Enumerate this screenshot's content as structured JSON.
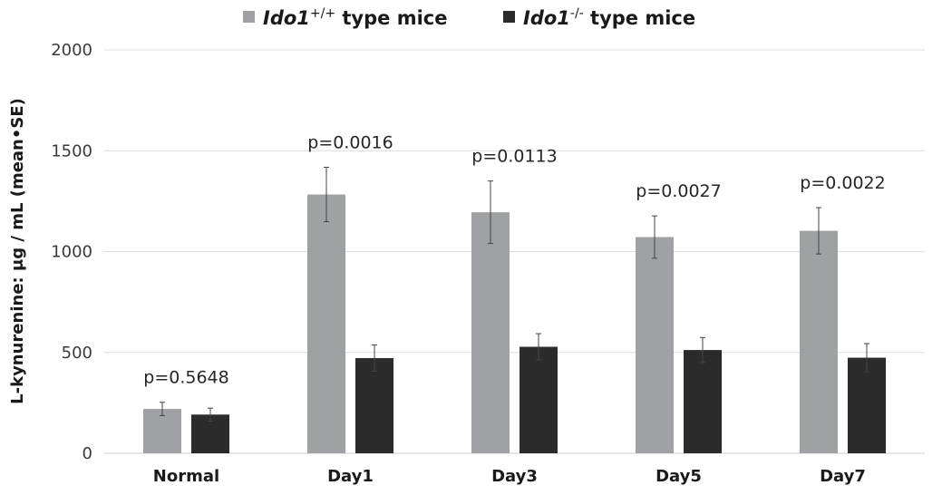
{
  "chart_data": {
    "type": "bar",
    "categories": [
      "Normal",
      "Day1",
      "Day3",
      "Day5",
      "Day7"
    ],
    "series": [
      {
        "name": "Ido1+/+ type mice",
        "name_parts": [
          "Ido1",
          "+/+",
          " type mice"
        ],
        "color": "#a0a1a5",
        "values": [
          220,
          1283,
          1195,
          1072,
          1103
        ],
        "errors": [
          33,
          135,
          155,
          105,
          115
        ]
      },
      {
        "name": "Ido1-/- type mice",
        "name_parts": [
          "Ido1",
          "-/-",
          " type mice"
        ],
        "color": "#2b2b2b",
        "values": [
          192,
          472,
          528,
          512,
          474
        ],
        "errors": [
          32,
          65,
          65,
          62,
          70
        ]
      }
    ],
    "p_values": [
      "p=0.5648",
      "p=0.0016",
      "p=0.0113",
      "p=0.0027",
      "p=0.0022"
    ],
    "ylabel": "L-kynurenine: μg / mL (mean•SE)",
    "xlabel": "",
    "title": "",
    "ylim": [
      0,
      2000
    ],
    "yticks": [
      0,
      500,
      1000,
      1500,
      2000
    ],
    "grid": true,
    "legend_position": "top-center"
  }
}
